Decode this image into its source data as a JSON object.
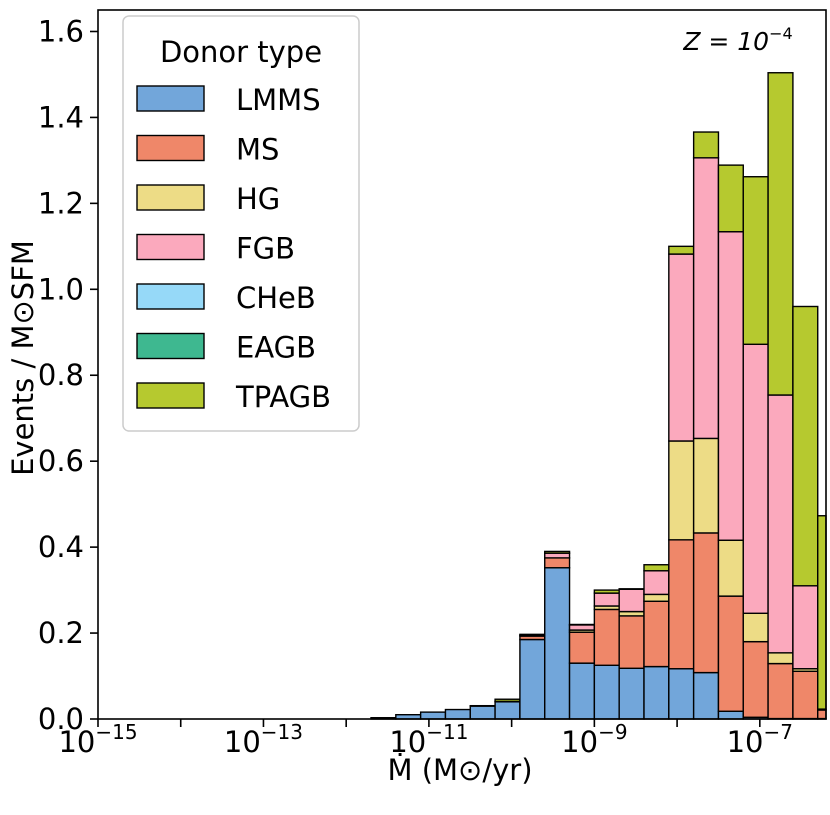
{
  "chart_data": {
    "type": "bar",
    "subtype": "stacked-histogram",
    "annotation": "Z = 10",
    "annotation_exp": "−4",
    "xlabel": "Ṁ (M⊙/yr)",
    "ylabel": "Events / M⊙SFM",
    "xscale": "log",
    "xlim_log10": [
      -15,
      -6.2
    ],
    "ylim": [
      0,
      1.65
    ],
    "xtick_base": "10",
    "xticks": [
      {
        "exp": -15,
        "label": "−15"
      },
      {
        "exp": -13,
        "label": "−13"
      },
      {
        "exp": -11,
        "label": "−11"
      },
      {
        "exp": -9,
        "label": "−9"
      },
      {
        "exp": -7,
        "label": "−7"
      }
    ],
    "yticks": [
      {
        "value": 0.0,
        "label": "0.0"
      },
      {
        "value": 0.2,
        "label": "0.2"
      },
      {
        "value": 0.4,
        "label": "0.4"
      },
      {
        "value": 0.6,
        "label": "0.6"
      },
      {
        "value": 0.8,
        "label": "0.8"
      },
      {
        "value": 1.0,
        "label": "1.0"
      },
      {
        "value": 1.2,
        "label": "1.2"
      },
      {
        "value": 1.4,
        "label": "1.4"
      },
      {
        "value": 1.6,
        "label": "1.6"
      }
    ],
    "legend": {
      "title": "Donor type",
      "position": "top-left"
    },
    "bin_width_dex": 0.3,
    "bin_starts_log10": [
      -15.0,
      -14.7,
      -14.4,
      -14.1,
      -13.8,
      -13.5,
      -13.2,
      -12.9,
      -12.6,
      -12.3,
      -12.0,
      -11.7,
      -11.4,
      -11.1,
      -10.8,
      -10.5,
      -10.2,
      -9.9,
      -9.6,
      -9.3,
      -9.0,
      -8.7,
      -8.4,
      -8.1,
      -7.8,
      -7.5,
      -7.2,
      -6.9,
      -6.6,
      -6.3
    ],
    "series": [
      {
        "name": "LMMS",
        "color": "#72a6da",
        "values": [
          0,
          0,
          0,
          0,
          0,
          0,
          0,
          0,
          0,
          0,
          0,
          0.003,
          0.01,
          0.016,
          0.022,
          0.03,
          0.04,
          0.185,
          0.352,
          0.13,
          0.125,
          0.118,
          0.122,
          0.117,
          0.108,
          0.018,
          0.004,
          0.001,
          0.001,
          0.001
        ]
      },
      {
        "name": "MS",
        "color": "#ef8769",
        "values": [
          0,
          0,
          0,
          0,
          0,
          0,
          0,
          0,
          0,
          0,
          0,
          0,
          0,
          0,
          0,
          0,
          0,
          0.008,
          0.023,
          0.072,
          0.13,
          0.122,
          0.152,
          0.3,
          0.325,
          0.268,
          0.176,
          0.128,
          0.11,
          0.02
        ]
      },
      {
        "name": "HG",
        "color": "#eddc86",
        "values": [
          0,
          0,
          0,
          0,
          0,
          0,
          0,
          0,
          0,
          0,
          0,
          0,
          0,
          0,
          0,
          0,
          0,
          0,
          0,
          0.005,
          0.008,
          0.01,
          0.016,
          0.23,
          0.22,
          0.13,
          0.066,
          0.025,
          0.006,
          0
        ]
      },
      {
        "name": "FGB",
        "color": "#fba9bd",
        "values": [
          0,
          0,
          0,
          0,
          0,
          0,
          0,
          0,
          0,
          0,
          0,
          0,
          0,
          0,
          0,
          0,
          0.001,
          0.002,
          0.011,
          0.012,
          0.03,
          0.052,
          0.055,
          0.435,
          0.653,
          0.718,
          0.626,
          0.6,
          0.193,
          0.002
        ]
      },
      {
        "name": "CHeB",
        "color": "#96d9f8",
        "values": [
          0,
          0,
          0,
          0,
          0,
          0,
          0,
          0,
          0,
          0,
          0,
          0,
          0,
          0,
          0,
          0,
          0,
          0,
          0,
          0,
          0,
          0,
          0,
          0,
          0,
          0,
          0,
          0,
          0,
          0
        ]
      },
      {
        "name": "EAGB",
        "color": "#3eb890",
        "values": [
          0,
          0,
          0,
          0,
          0,
          0,
          0,
          0,
          0,
          0,
          0,
          0,
          0,
          0,
          0,
          0,
          0,
          0,
          0,
          0,
          0,
          0,
          0,
          0,
          0,
          0,
          0,
          0,
          0,
          0
        ]
      },
      {
        "name": "TPAGB",
        "color": "#b6c92f",
        "values": [
          0,
          0,
          0,
          0,
          0,
          0,
          0,
          0,
          0,
          0,
          0,
          0,
          0,
          0,
          0,
          0.001,
          0.005,
          0.002,
          0.004,
          0.001,
          0.007,
          0.001,
          0.014,
          0.018,
          0.06,
          0.155,
          0.39,
          0.75,
          0.65,
          0.45
        ]
      }
    ]
  }
}
